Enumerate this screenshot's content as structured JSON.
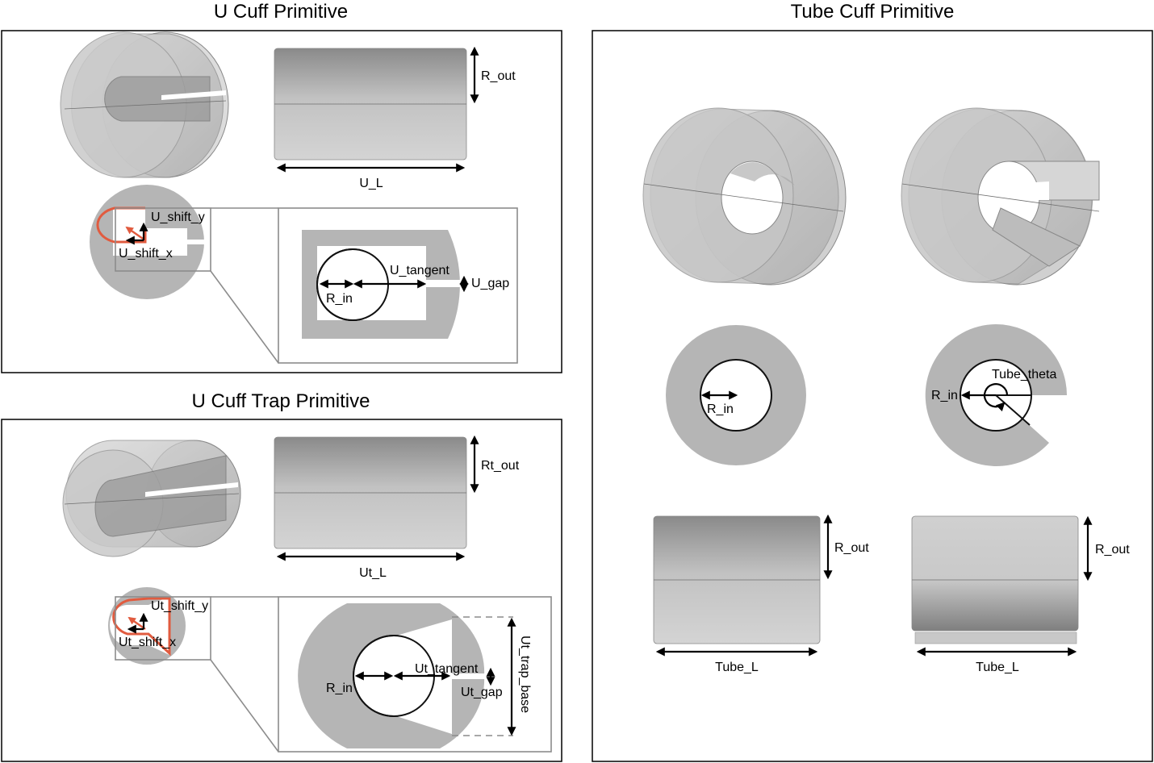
{
  "panels": {
    "u_cuff": {
      "title": "U Cuff Primitive",
      "labels": {
        "r_out": "R_out",
        "u_l": "U_L",
        "u_shift_y": "U_shift_y",
        "u_shift_x": "U_shift_x",
        "u_tangent": "U_tangent",
        "u_gap": "U_gap",
        "r_in": "R_in"
      }
    },
    "u_cuff_trap": {
      "title": "U Cuff Trap Primitive",
      "labels": {
        "rt_out": "Rt_out",
        "ut_l": "Ut_L",
        "ut_shift_y": "Ut_shift_y",
        "ut_shift_x": "Ut_shift_x",
        "ut_tangent": "Ut_tangent",
        "ut_gap": "Ut_gap",
        "ut_trap_base": "Ut_trap_base",
        "r_in": "R_in"
      }
    },
    "tube_cuff": {
      "title": "Tube Cuff Primitive",
      "labels": {
        "r_in_left": "R_in",
        "r_in_right": "R_in",
        "tube_theta": "Tube_theta",
        "r_out_left": "R_out",
        "r_out_right": "R_out",
        "tube_l_left": "Tube_L",
        "tube_l_right": "Tube_L"
      }
    }
  },
  "colors": {
    "shape_fill": "#b5b5b5",
    "highlight": "#e15b3f",
    "frame": "#000000"
  }
}
